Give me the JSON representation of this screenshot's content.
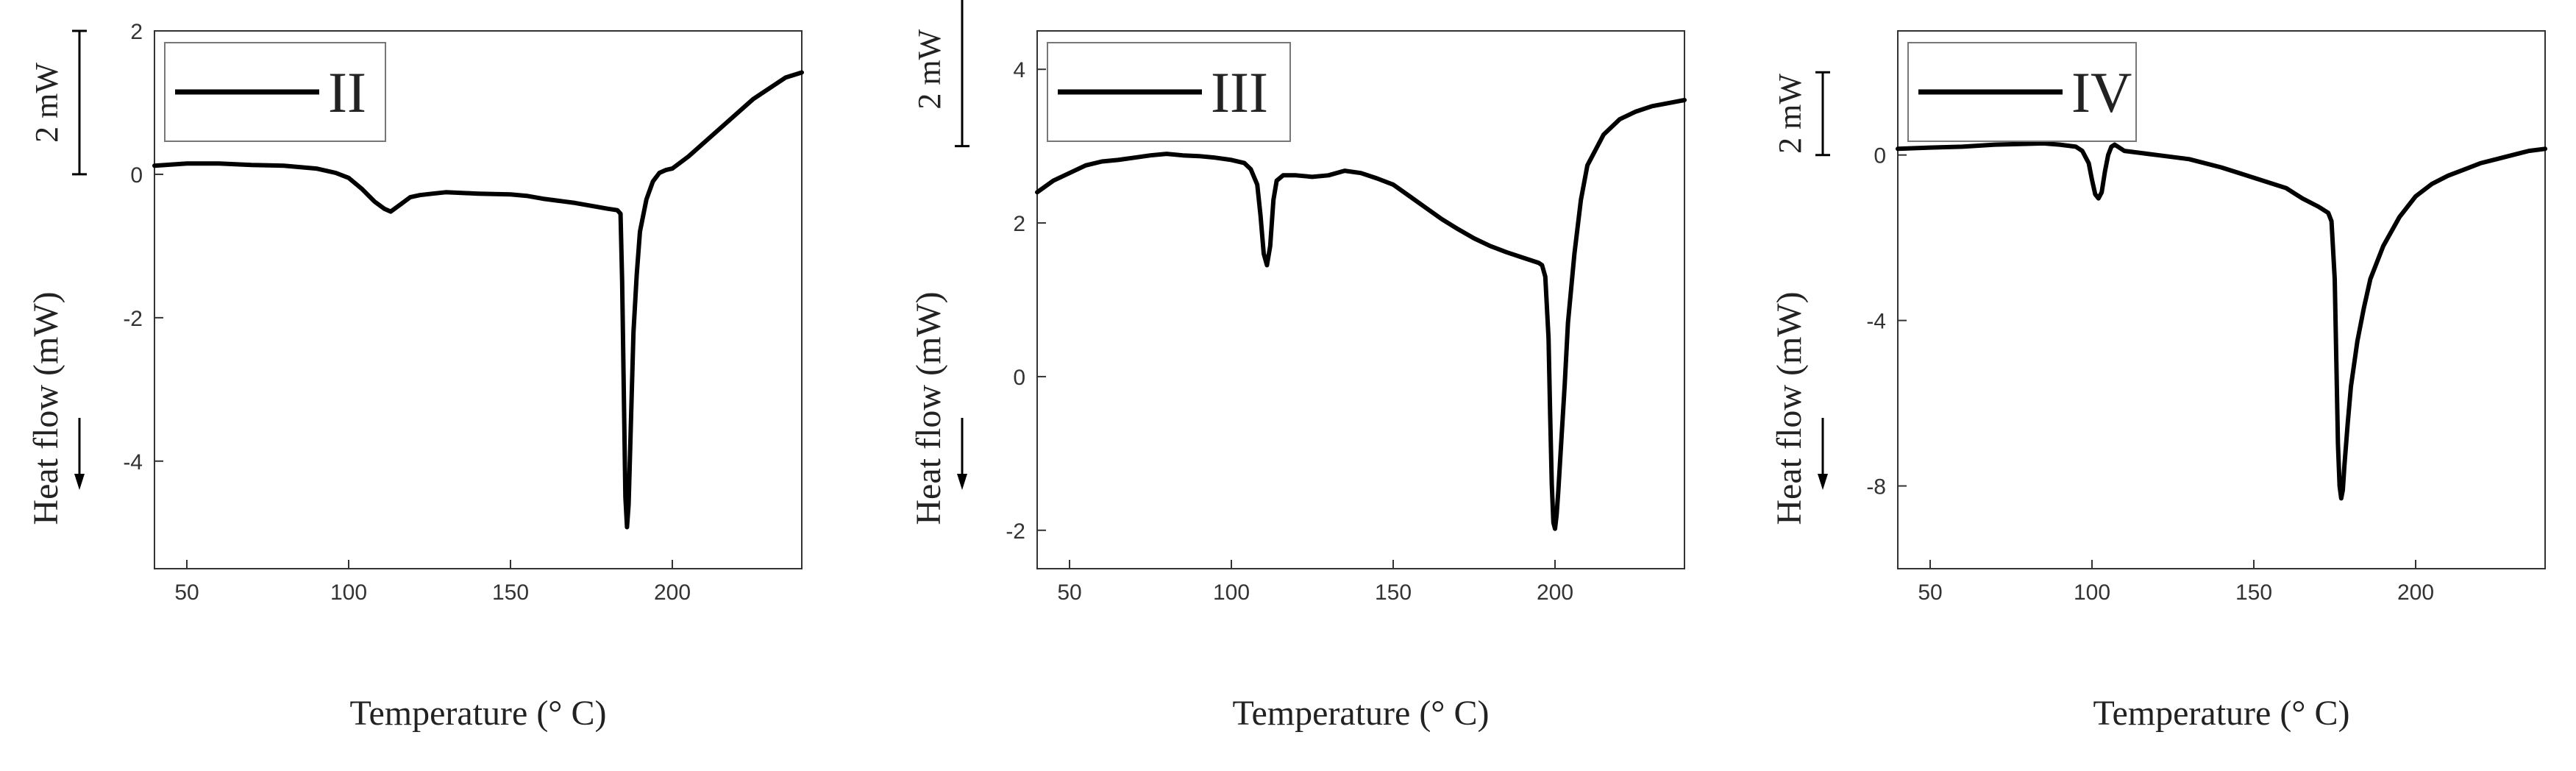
{
  "chart_data": [
    {
      "type": "line",
      "series": [
        {
          "name": "II",
          "x": [
            40,
            50,
            60,
            70,
            80,
            90,
            96,
            100,
            104,
            108,
            111,
            113,
            116,
            119,
            122,
            126,
            130,
            140,
            150,
            155,
            160,
            165,
            170,
            175,
            180,
            183,
            184,
            184.5,
            185,
            185.5,
            186,
            186.5,
            187,
            187.5,
            188,
            189,
            190,
            192,
            194,
            196,
            198,
            200,
            205,
            210,
            215,
            220,
            225,
            230,
            235,
            240
          ],
          "y": [
            0.12,
            0.15,
            0.15,
            0.13,
            0.12,
            0.08,
            0.02,
            -0.05,
            -0.2,
            -0.38,
            -0.48,
            -0.52,
            -0.42,
            -0.32,
            -0.29,
            -0.27,
            -0.25,
            -0.27,
            -0.28,
            -0.3,
            -0.34,
            -0.37,
            -0.4,
            -0.44,
            -0.48,
            -0.5,
            -0.55,
            -1.5,
            -3.0,
            -4.5,
            -4.92,
            -4.6,
            -3.8,
            -3.0,
            -2.2,
            -1.4,
            -0.8,
            -0.35,
            -0.1,
            0.02,
            0.06,
            0.08,
            0.25,
            0.45,
            0.65,
            0.85,
            1.05,
            1.2,
            1.35,
            1.42
          ]
        }
      ],
      "xlabel": "Temperature (° C)",
      "ylabel": "Heat flow (mW)",
      "xlim": [
        40,
        240
      ],
      "ylim": [
        -5.5,
        2
      ],
      "xticks": [
        50,
        100,
        150,
        200
      ],
      "yticks": [
        2,
        0,
        -2,
        -4
      ],
      "legend": "top-left",
      "scale_bar": "2 mW",
      "scale_bar_range": [
        0,
        2
      ]
    },
    {
      "type": "line",
      "series": [
        {
          "name": "III",
          "x": [
            40,
            45,
            50,
            55,
            60,
            65,
            70,
            75,
            80,
            85,
            90,
            95,
            100,
            104,
            106,
            108,
            109,
            110,
            111,
            112,
            113,
            114,
            116,
            120,
            125,
            130,
            135,
            140,
            145,
            150,
            155,
            160,
            165,
            170,
            175,
            180,
            185,
            190,
            195,
            196,
            197,
            198,
            198.5,
            199,
            199.5,
            200,
            200.5,
            201,
            202,
            203,
            204,
            206,
            208,
            210,
            215,
            220,
            225,
            230,
            235,
            240
          ],
          "y": [
            2.4,
            2.55,
            2.65,
            2.75,
            2.8,
            2.82,
            2.85,
            2.88,
            2.9,
            2.88,
            2.87,
            2.85,
            2.82,
            2.78,
            2.7,
            2.5,
            2.1,
            1.6,
            1.45,
            1.7,
            2.3,
            2.55,
            2.62,
            2.62,
            2.6,
            2.62,
            2.68,
            2.65,
            2.58,
            2.5,
            2.35,
            2.2,
            2.05,
            1.92,
            1.8,
            1.7,
            1.62,
            1.55,
            1.48,
            1.45,
            1.3,
            0.5,
            -0.5,
            -1.4,
            -1.9,
            -1.98,
            -1.8,
            -1.5,
            -0.8,
            -0.1,
            0.7,
            1.6,
            2.3,
            2.75,
            3.15,
            3.35,
            3.45,
            3.52,
            3.56,
            3.6
          ]
        }
      ],
      "xlabel": "Temperature (° C)",
      "ylabel": "Heat flow (mW)",
      "xlim": [
        40,
        240
      ],
      "ylim": [
        -2.5,
        4.5
      ],
      "xticks": [
        50,
        100,
        150,
        200
      ],
      "yticks": [
        4,
        2,
        0,
        -2
      ],
      "legend": "top-left",
      "scale_bar": "2 mW",
      "scale_bar_range": [
        3,
        5
      ]
    },
    {
      "type": "line",
      "series": [
        {
          "name": "IV",
          "x": [
            40,
            50,
            60,
            70,
            80,
            85,
            90,
            95,
            97,
            99,
            100,
            101,
            102,
            103,
            104,
            105,
            106,
            107,
            108,
            110,
            115,
            120,
            130,
            140,
            150,
            160,
            165,
            170,
            173,
            174,
            175,
            175.5,
            176,
            176.5,
            177,
            177.5,
            178,
            179,
            180,
            182,
            184,
            186,
            190,
            195,
            200,
            205,
            210,
            215,
            220,
            225,
            230,
            235,
            240
          ],
          "y": [
            0.15,
            0.18,
            0.2,
            0.25,
            0.27,
            0.28,
            0.25,
            0.2,
            0.1,
            -0.2,
            -0.6,
            -0.95,
            -1.05,
            -0.9,
            -0.4,
            0.0,
            0.2,
            0.25,
            0.2,
            0.1,
            0.05,
            0.0,
            -0.1,
            -0.3,
            -0.55,
            -0.8,
            -1.05,
            -1.25,
            -1.4,
            -1.6,
            -3.0,
            -5.0,
            -7.0,
            -8.0,
            -8.3,
            -8.1,
            -7.5,
            -6.5,
            -5.6,
            -4.5,
            -3.7,
            -3.0,
            -2.2,
            -1.5,
            -1.0,
            -0.7,
            -0.5,
            -0.35,
            -0.2,
            -0.1,
            0.0,
            0.1,
            0.15
          ]
        }
      ],
      "xlabel": "Temperature (° C)",
      "ylabel": "Heat flow (mW)",
      "xlim": [
        40,
        240
      ],
      "ylim": [
        -10,
        3
      ],
      "xticks": [
        50,
        100,
        150,
        200
      ],
      "yticks": [
        0,
        -4,
        -8
      ],
      "legend": "top-left",
      "scale_bar": "2 mW",
      "scale_bar_range": [
        0,
        2
      ]
    }
  ]
}
